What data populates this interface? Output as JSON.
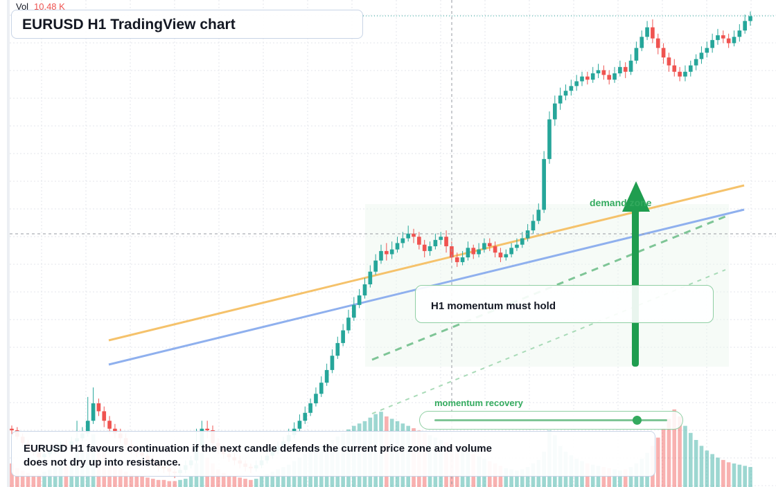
{
  "header": {
    "vol_label": "Vol",
    "vol_value": "10.48 K",
    "title": "EURUSD H1 TradingView chart"
  },
  "annotations": {
    "callout": "H1 momentum must hold",
    "zone_label": "demand zone",
    "momentum_label": "momentum recovery",
    "momentum_level": 0.87,
    "summary": "EURUSD H1 favours continuation if the next candle defends the current price zone and volume does not dry up into resistance."
  },
  "colors": {
    "up": "#26a69a",
    "down": "#ef5350",
    "resistance_line": "#f5c26b",
    "trend_line": "#8fb0ee",
    "accent_green": "#33aa5e",
    "grid": "#e3e6eb"
  },
  "icons": {
    "arrow": "arrow-up-icon",
    "knob": "slider-knob-icon"
  },
  "chart_data": {
    "type": "candlestick",
    "symbol": "EURUSD",
    "timeframe": "H1",
    "candles": [
      [
        1080,
        1078,
        1084,
        1072
      ],
      [
        1078,
        1070,
        1082,
        1066
      ],
      [
        1070,
        1062,
        1074,
        1058
      ],
      [
        1062,
        1055,
        1066,
        1050
      ],
      [
        1055,
        1050,
        1058,
        1046
      ],
      [
        1050,
        1044,
        1054,
        1040
      ],
      [
        1044,
        1048,
        1052,
        1040
      ],
      [
        1048,
        1052,
        1056,
        1044
      ],
      [
        1052,
        1056,
        1060,
        1048
      ],
      [
        1056,
        1060,
        1064,
        1052
      ],
      [
        1060,
        1058,
        1066,
        1054
      ],
      [
        1058,
        1064,
        1070,
        1054
      ],
      [
        1064,
        1068,
        1090,
        1060
      ],
      [
        1068,
        1074,
        1082,
        1064
      ],
      [
        1074,
        1090,
        1120,
        1070
      ],
      [
        1090,
        1112,
        1132,
        1086
      ],
      [
        1112,
        1102,
        1118,
        1096
      ],
      [
        1102,
        1090,
        1108,
        1082
      ],
      [
        1090,
        1080,
        1096,
        1074
      ],
      [
        1080,
        1074,
        1086,
        1068
      ],
      [
        1074,
        1068,
        1080,
        1062
      ],
      [
        1068,
        1060,
        1074,
        1054
      ],
      [
        1060,
        1054,
        1066,
        1048
      ],
      [
        1054,
        1050,
        1058,
        1044
      ],
      [
        1050,
        1046,
        1056,
        1040
      ],
      [
        1046,
        1040,
        1050,
        1036
      ],
      [
        1040,
        1036,
        1046,
        1030
      ],
      [
        1036,
        1032,
        1040,
        1026
      ],
      [
        1032,
        1030,
        1036,
        1024
      ],
      [
        1030,
        1026,
        1034,
        1020
      ],
      [
        1026,
        1024,
        1030,
        1018
      ],
      [
        1024,
        1028,
        1034,
        1020
      ],
      [
        1028,
        1034,
        1040,
        1024
      ],
      [
        1034,
        1040,
        1046,
        1030
      ],
      [
        1040,
        1058,
        1080,
        1036
      ],
      [
        1058,
        1080,
        1090,
        1054
      ],
      [
        1080,
        1078,
        1090,
        1068
      ],
      [
        1078,
        1062,
        1084,
        1056
      ],
      [
        1062,
        1054,
        1068,
        1048
      ],
      [
        1054,
        1048,
        1060,
        1042
      ],
      [
        1048,
        1044,
        1054,
        1038
      ],
      [
        1044,
        1040,
        1050,
        1034
      ],
      [
        1040,
        1036,
        1046,
        1030
      ],
      [
        1036,
        1032,
        1040,
        1026
      ],
      [
        1032,
        1030,
        1036,
        1024
      ],
      [
        1030,
        1034,
        1040,
        1026
      ],
      [
        1034,
        1040,
        1046,
        1030
      ],
      [
        1040,
        1046,
        1052,
        1036
      ],
      [
        1046,
        1052,
        1058,
        1042
      ],
      [
        1052,
        1058,
        1064,
        1048
      ],
      [
        1058,
        1064,
        1070,
        1054
      ],
      [
        1064,
        1072,
        1080,
        1060
      ],
      [
        1072,
        1080,
        1088,
        1068
      ],
      [
        1080,
        1090,
        1098,
        1076
      ],
      [
        1090,
        1100,
        1108,
        1086
      ],
      [
        1100,
        1112,
        1118,
        1096
      ],
      [
        1112,
        1124,
        1132,
        1108
      ],
      [
        1124,
        1138,
        1146,
        1120
      ],
      [
        1138,
        1154,
        1162,
        1134
      ],
      [
        1154,
        1172,
        1180,
        1150
      ],
      [
        1172,
        1188,
        1196,
        1168
      ],
      [
        1188,
        1204,
        1212,
        1184
      ],
      [
        1204,
        1220,
        1230,
        1200
      ],
      [
        1220,
        1236,
        1246,
        1216
      ],
      [
        1236,
        1248,
        1256,
        1232
      ],
      [
        1248,
        1262,
        1270,
        1244
      ],
      [
        1262,
        1278,
        1286,
        1258
      ],
      [
        1278,
        1292,
        1300,
        1274
      ],
      [
        1292,
        1304,
        1312,
        1288
      ],
      [
        1304,
        1300,
        1314,
        1292
      ],
      [
        1300,
        1306,
        1316,
        1294
      ],
      [
        1306,
        1314,
        1322,
        1302
      ],
      [
        1314,
        1320,
        1328,
        1308
      ],
      [
        1320,
        1326,
        1336,
        1316
      ],
      [
        1326,
        1322,
        1332,
        1314
      ],
      [
        1322,
        1312,
        1328,
        1306
      ],
      [
        1312,
        1304,
        1318,
        1296
      ],
      [
        1304,
        1310,
        1316,
        1298
      ],
      [
        1310,
        1318,
        1326,
        1306
      ],
      [
        1318,
        1322,
        1328,
        1312
      ],
      [
        1322,
        1310,
        1330,
        1302
      ],
      [
        1310,
        1296,
        1316,
        1290
      ],
      [
        1296,
        1290,
        1302,
        1284
      ],
      [
        1290,
        1296,
        1304,
        1286
      ],
      [
        1296,
        1308,
        1316,
        1292
      ],
      [
        1308,
        1300,
        1312,
        1294
      ],
      [
        1300,
        1306,
        1314,
        1296
      ],
      [
        1306,
        1314,
        1320,
        1302
      ],
      [
        1314,
        1310,
        1320,
        1304
      ],
      [
        1310,
        1302,
        1316,
        1296
      ],
      [
        1302,
        1296,
        1308,
        1290
      ],
      [
        1296,
        1300,
        1306,
        1292
      ],
      [
        1300,
        1308,
        1314,
        1296
      ],
      [
        1308,
        1312,
        1320,
        1304
      ],
      [
        1312,
        1320,
        1328,
        1308
      ],
      [
        1320,
        1330,
        1338,
        1316
      ],
      [
        1330,
        1342,
        1350,
        1326
      ],
      [
        1342,
        1356,
        1364,
        1338
      ],
      [
        1356,
        1420,
        1430,
        1352
      ],
      [
        1420,
        1470,
        1480,
        1414
      ],
      [
        1470,
        1490,
        1500,
        1462
      ],
      [
        1490,
        1500,
        1510,
        1482
      ],
      [
        1500,
        1506,
        1514,
        1494
      ],
      [
        1506,
        1512,
        1520,
        1500
      ],
      [
        1512,
        1518,
        1526,
        1506
      ],
      [
        1518,
        1524,
        1530,
        1512
      ],
      [
        1524,
        1520,
        1530,
        1514
      ],
      [
        1520,
        1528,
        1536,
        1516
      ],
      [
        1528,
        1532,
        1540,
        1522
      ],
      [
        1532,
        1526,
        1538,
        1520
      ],
      [
        1526,
        1520,
        1532,
        1514
      ],
      [
        1520,
        1528,
        1536,
        1516
      ],
      [
        1528,
        1536,
        1544,
        1524
      ],
      [
        1536,
        1530,
        1542,
        1522
      ],
      [
        1530,
        1544,
        1552,
        1526
      ],
      [
        1544,
        1560,
        1568,
        1540
      ],
      [
        1560,
        1574,
        1582,
        1556
      ],
      [
        1574,
        1586,
        1594,
        1570
      ],
      [
        1586,
        1572,
        1596,
        1566
      ],
      [
        1572,
        1560,
        1578,
        1552
      ],
      [
        1560,
        1548,
        1566,
        1540
      ],
      [
        1548,
        1538,
        1554,
        1530
      ],
      [
        1538,
        1530,
        1546,
        1524
      ],
      [
        1530,
        1524,
        1536,
        1518
      ],
      [
        1524,
        1530,
        1538,
        1518
      ],
      [
        1530,
        1538,
        1544,
        1524
      ],
      [
        1538,
        1546,
        1552,
        1532
      ],
      [
        1546,
        1554,
        1562,
        1540
      ],
      [
        1554,
        1560,
        1568,
        1548
      ],
      [
        1560,
        1570,
        1578,
        1554
      ],
      [
        1570,
        1576,
        1584,
        1564
      ],
      [
        1576,
        1572,
        1582,
        1566
      ],
      [
        1572,
        1566,
        1578,
        1560
      ],
      [
        1566,
        1574,
        1582,
        1562
      ],
      [
        1574,
        1582,
        1590,
        1568
      ],
      [
        1582,
        1594,
        1602,
        1578
      ],
      [
        1594,
        1600,
        1606,
        1588
      ]
    ],
    "volume": [
      40,
      32,
      28,
      24,
      20,
      22,
      26,
      30,
      34,
      38,
      42,
      48,
      66,
      58,
      72,
      90,
      70,
      60,
      44,
      36,
      30,
      26,
      22,
      20,
      18,
      16,
      14,
      12,
      12,
      10,
      10,
      12,
      14,
      18,
      40,
      58,
      50,
      40,
      30,
      24,
      20,
      18,
      16,
      14,
      12,
      14,
      18,
      22,
      26,
      30,
      34,
      38,
      44,
      50,
      56,
      62,
      66,
      70,
      74,
      80,
      86,
      92,
      98,
      104,
      108,
      112,
      118,
      124,
      128,
      120,
      116,
      112,
      108,
      104,
      100,
      96,
      92,
      88,
      84,
      80,
      76,
      72,
      68,
      64,
      60,
      56,
      52,
      48,
      44,
      40,
      36,
      32,
      30,
      28,
      30,
      34,
      40,
      46,
      60,
      96,
      88,
      70,
      60,
      54,
      48,
      44,
      40,
      38,
      36,
      34,
      32,
      30,
      28,
      30,
      34,
      40,
      48,
      58,
      70,
      84,
      100,
      116,
      132,
      120,
      104,
      92,
      80,
      70,
      62,
      56,
      50,
      46,
      42,
      40,
      38,
      36,
      34,
      32,
      30,
      28
    ]
  }
}
